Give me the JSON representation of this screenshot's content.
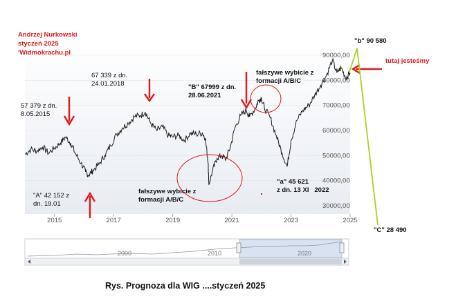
{
  "author": {
    "line1": "Andrzej Nurkowski",
    "line2": "styczeń 2025",
    "line3": "'Widmokrachu.pl"
  },
  "annotations": {
    "a2015_line1": "57 379 z dn.",
    "a2015_line2": "8.05.2015",
    "a2018_line1": "67 339 z dn.",
    "a2018_line2": "24.01.2018",
    "B_line1": "\"B\" 67999 z dn.",
    "B_line2": "28.06.2021",
    "false1_line1": "fałszywe wybicie z",
    "false1_line2": "formacji A/B/C",
    "A_line1": "\"A\" 42 152 z",
    "A_line2": "dn. 19.01",
    "false2_line1": "fałszywe wybicie z",
    "false2_line2": "formacji A/B/C",
    "a_line1": "\"a\" 45 621",
    "a_line2": "z dn. 13 XI",
    "a_year": "2022",
    "b_label": "\"b\" 90 580",
    "here_label": "tutaj jesteśmy",
    "C_label": "\"C\" 28 490"
  },
  "navigator": {
    "labels": [
      "2000",
      "2010",
      "2020"
    ]
  },
  "caption": "Rys.  Prognoza dla WIG ....styczeń 2025",
  "colors": {
    "line": "#1a1a1a",
    "plot_gradient_top": "#ffffff",
    "plot_gradient_bottom": "#e8ecf2",
    "arrow": "#e0181c",
    "forecast": "#a8d21c",
    "text_red": "#e0181c"
  },
  "chart_data": {
    "type": "line",
    "x_range": [
      "2014-01",
      "2025-01"
    ],
    "ylim": [
      30000,
      90000
    ],
    "x_ticks": [
      "2015",
      "2017",
      "2019",
      "2021",
      "2023",
      "2025"
    ],
    "y_ticks": [
      "30000,00",
      "40000,00",
      "50000,00",
      "60000,00",
      "70000,00",
      "80000,00",
      "90000,00"
    ],
    "series": [
      {
        "x": [
          2014.0,
          2014.2,
          2014.4,
          2014.6,
          2014.8,
          2015.0,
          2015.2,
          2015.37,
          2015.55,
          2015.7,
          2015.9,
          2016.05,
          2016.15,
          2016.3,
          2016.5,
          2016.7,
          2016.9,
          2017.1,
          2017.3,
          2017.5,
          2017.7,
          2017.9,
          2018.07,
          2018.25,
          2018.45,
          2018.65,
          2018.85,
          2019.0,
          2019.2,
          2019.4,
          2019.6,
          2019.8,
          2020.0,
          2020.1,
          2020.2,
          2020.22,
          2020.35,
          2020.5,
          2020.65,
          2020.8,
          2020.95,
          2021.1,
          2021.3,
          2021.49,
          2021.6,
          2021.8,
          2021.9,
          2022.0,
          2022.1,
          2022.3,
          2022.5,
          2022.7,
          2022.87,
          2023.0,
          2023.2,
          2023.4,
          2023.6,
          2023.8,
          2024.0,
          2024.2,
          2024.4,
          2024.55,
          2024.7,
          2024.85,
          2025.0
        ],
        "y": [
          50500,
          52500,
          51800,
          53500,
          51000,
          53000,
          55000,
          57379,
          55000,
          51000,
          47000,
          43500,
          42152,
          44000,
          46500,
          50000,
          54000,
          58500,
          61000,
          63000,
          65500,
          66000,
          67339,
          63000,
          60000,
          61500,
          58000,
          57500,
          58000,
          56000,
          59000,
          58500,
          59000,
          57000,
          47000,
          38500,
          44000,
          49000,
          50000,
          48500,
          53500,
          61000,
          66000,
          67999,
          65500,
          69000,
          72000,
          73000,
          69000,
          65000,
          58000,
          51000,
          45621,
          56000,
          64000,
          68000,
          70000,
          74000,
          78000,
          82000,
          88000,
          83000,
          85000,
          81000,
          83000
        ]
      }
    ],
    "annotations": [
      {
        "label": "\"b\" 90 580",
        "x": 2025.1,
        "y": 90580
      },
      {
        "label": "\"C\" 28 490",
        "x": 2026.0,
        "y": 28490
      }
    ]
  }
}
